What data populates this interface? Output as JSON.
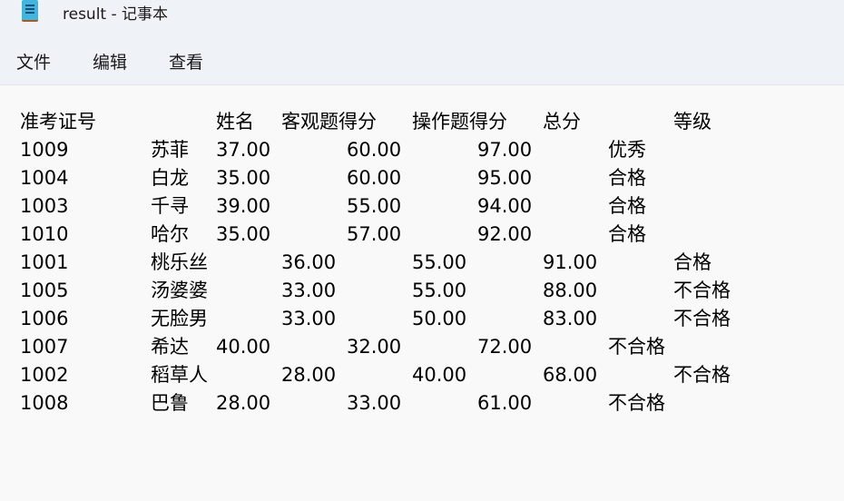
{
  "window": {
    "title": "result - 记事本",
    "icon": "notepad-icon"
  },
  "menu": {
    "file": "文件",
    "edit": "编辑",
    "view": "查看"
  },
  "content": {
    "lines": [
      "准考证号\t\t姓名\t客观题得分\t操作题得分\t总分\t\t等级",
      "1009\t\t苏菲\t37.00\t\t60.00\t\t97.00\t\t优秀",
      "1004\t\t白龙\t35.00\t\t60.00\t\t95.00\t\t合格",
      "1003\t\t千寻\t39.00\t\t55.00\t\t94.00\t\t合格",
      "1010\t\t哈尔\t35.00\t\t57.00\t\t92.00\t\t合格",
      "1001\t\t桃乐丝\t36.00\t\t55.00\t\t91.00\t\t合格",
      "1005\t\t汤婆婆\t33.00\t\t55.00\t\t88.00\t\t不合格",
      "1006\t\t无脸男\t33.00\t\t50.00\t\t83.00\t\t不合格",
      "1007\t\t希达\t40.00\t\t32.00\t\t72.00\t\t不合格",
      "1002\t\t稻草人\t28.00\t\t40.00\t\t68.00\t\t不合格",
      "1008\t\t巴鲁\t28.00\t\t33.00\t\t61.00\t\t不合格"
    ]
  }
}
